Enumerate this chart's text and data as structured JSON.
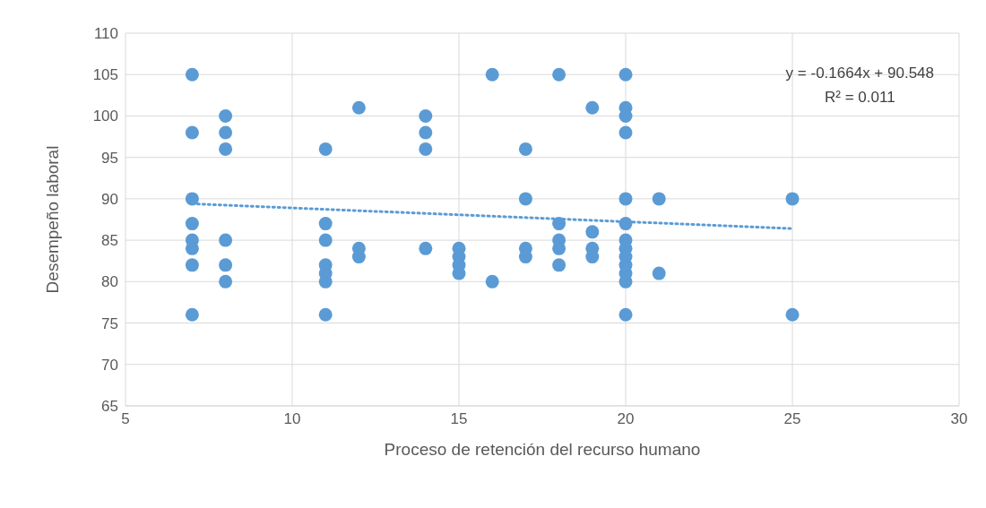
{
  "chart_data": {
    "type": "scatter",
    "xlabel": "Proceso de retención del recurso humano",
    "ylabel": "Desempeño laboral",
    "xlim": [
      5,
      30
    ],
    "xticks": [
      5,
      10,
      15,
      20,
      25,
      30
    ],
    "ylim": [
      65,
      110
    ],
    "yticks": [
      65,
      70,
      75,
      80,
      85,
      90,
      95,
      100,
      105,
      110
    ],
    "grid": true,
    "annotations": [
      "y = -0.1664x + 90.548",
      "R² = 0.011"
    ],
    "series": [
      {
        "color": "#5b9bd5",
        "marker": "circle",
        "x": [
          7,
          7,
          7,
          7,
          7,
          7,
          7,
          7,
          8,
          8,
          8,
          8,
          8,
          8,
          11,
          11,
          11,
          11,
          11,
          11,
          11,
          12,
          12,
          12,
          14,
          14,
          14,
          14,
          15,
          15,
          15,
          15,
          16,
          16,
          17,
          17,
          17,
          17,
          18,
          18,
          18,
          18,
          18,
          19,
          19,
          19,
          19,
          20,
          20,
          20,
          20,
          20,
          20,
          20,
          20,
          20,
          20,
          20,
          20,
          20,
          21,
          21,
          25,
          25
        ],
        "values": [
          105,
          98,
          90,
          87,
          85,
          84,
          82,
          76,
          100,
          98,
          96,
          85,
          82,
          80,
          96,
          87,
          85,
          82,
          81,
          80,
          76,
          101,
          84,
          83,
          100,
          98,
          96,
          84,
          84,
          83,
          82,
          81,
          105,
          80,
          96,
          90,
          84,
          83,
          105,
          87,
          85,
          84,
          82,
          101,
          86,
          84,
          83,
          105,
          101,
          100,
          98,
          90,
          87,
          85,
          84,
          83,
          82,
          81,
          80,
          76,
          90,
          81,
          90,
          76
        ]
      },
      {
        "type": "line",
        "color": "#5b9bd5",
        "line_style": "dotted",
        "marker": "none",
        "x": [
          7,
          25
        ],
        "values": [
          89.4,
          86.4
        ]
      }
    ]
  }
}
